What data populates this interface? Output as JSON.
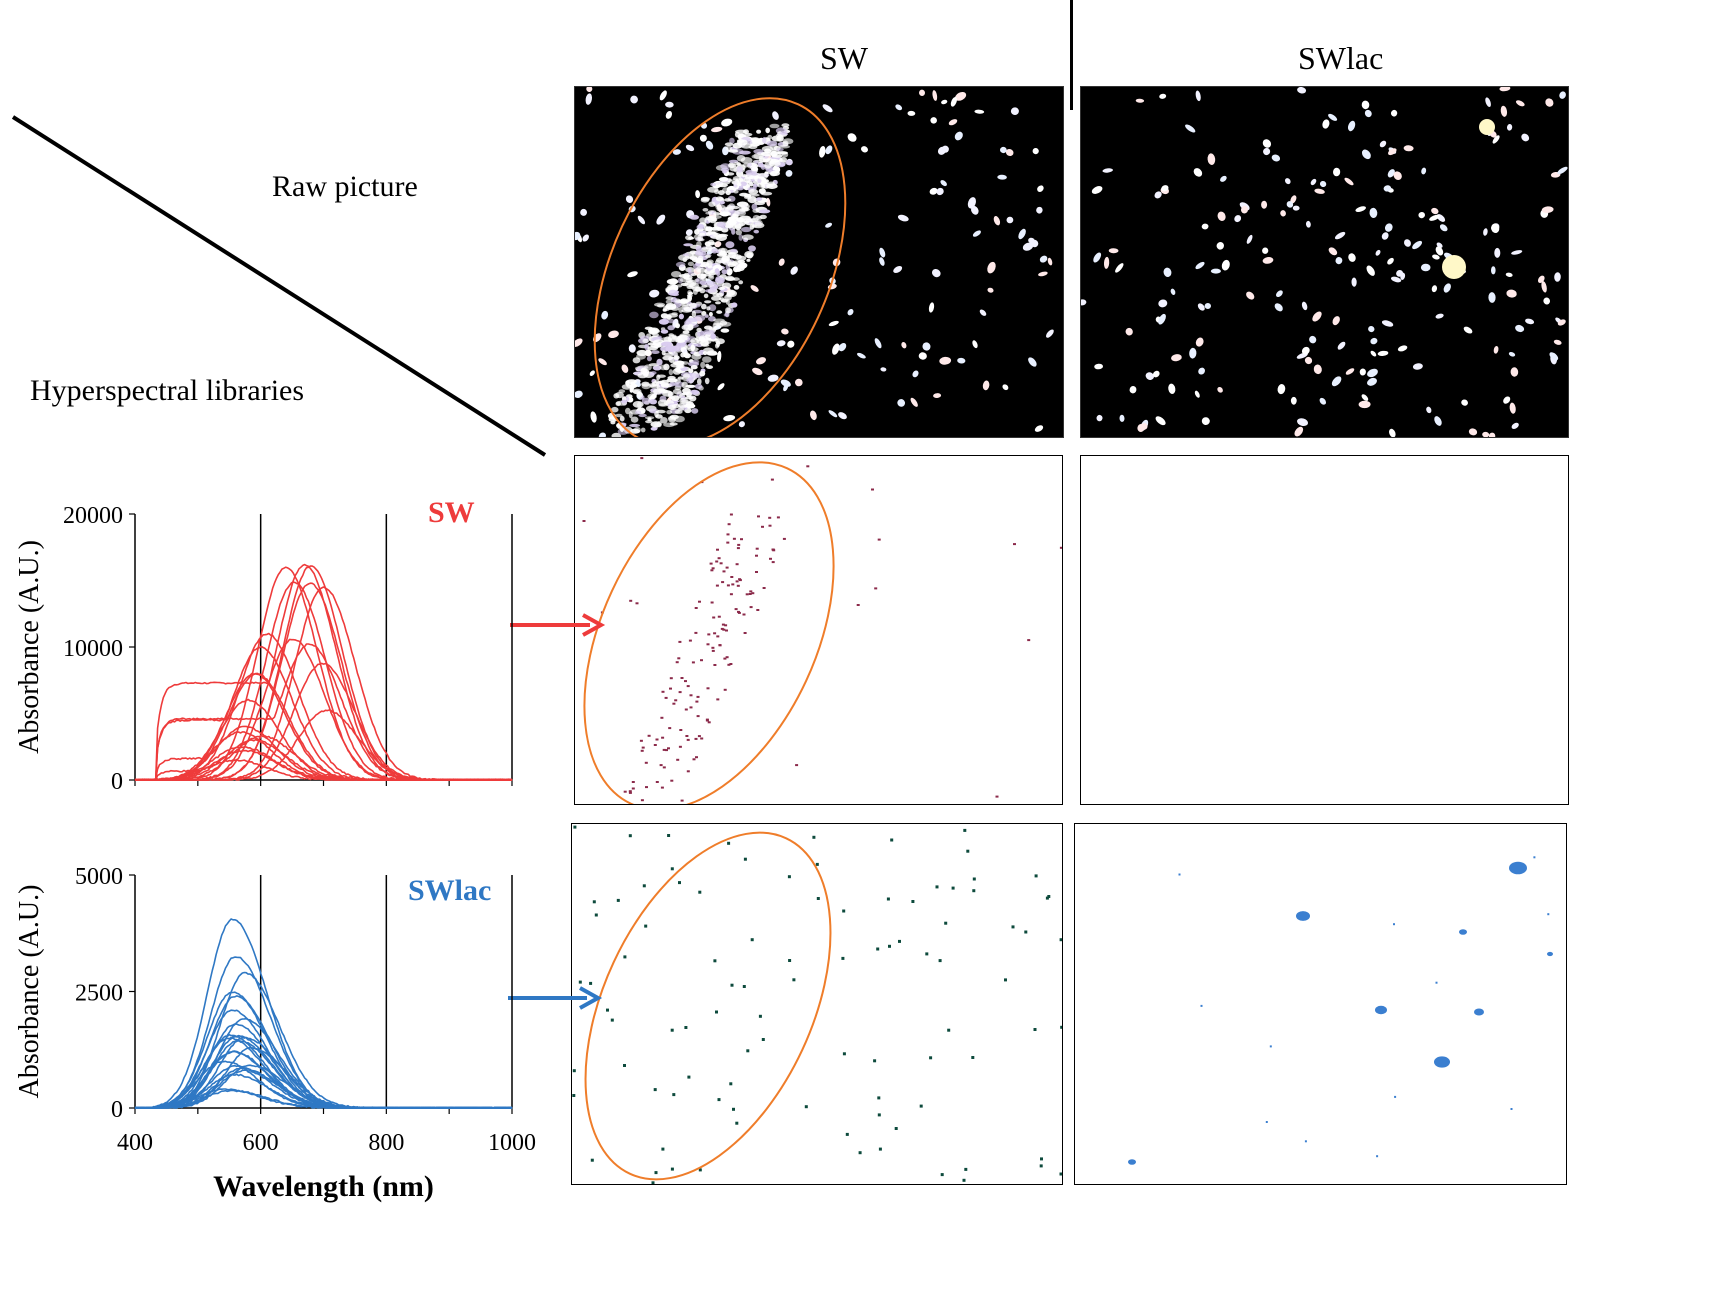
{
  "headers": {
    "col_sw": "SW",
    "col_swlac": "SWlac",
    "row_raw": "Raw picture",
    "row_libraries": "Hyperspectral libraries"
  },
  "colors": {
    "sw_series": "#ee3b3b",
    "swlac_series": "#2f78c4",
    "highlight_ellipse": "#ef7d2a",
    "sw_points": "#8b2a4a",
    "swlac_points_sw_image": "#0d4a3c",
    "swlac_points_swlac_image": "#3b7fd0"
  },
  "chart_data": [
    {
      "type": "line",
      "series_label": "SW",
      "ylabel": "Absorbance (A.U.)",
      "xlim": [
        400,
        1000
      ],
      "ylim": [
        0,
        20000
      ],
      "y_ticks": [
        "0",
        "10000",
        "20000"
      ],
      "x_gridlines": [
        600,
        800,
        1000
      ],
      "grid": "vertical",
      "curve_count": 22,
      "max_curve": {
        "peak_wavelength": 670,
        "peak_value": 16200
      },
      "curves_sample": [
        {
          "peak_wavelength": 640,
          "peak_value": 16000
        },
        {
          "peak_wavelength": 680,
          "peak_value": 16100
        },
        {
          "peak_wavelength": 700,
          "peak_value": 14500
        },
        {
          "peak_wavelength": 610,
          "peak_value": 11000
        },
        {
          "peak_wavelength": 600,
          "peak_value": 10000
        },
        {
          "peak_wavelength": 590,
          "peak_value": 8000
        },
        {
          "peak_wavelength": 580,
          "peak_value": 6000
        },
        {
          "peak_wavelength": 575,
          "peak_value": 4000
        },
        {
          "peak_wavelength": 570,
          "peak_value": 2500
        },
        {
          "peak_wavelength": 560,
          "peak_value": 1500
        }
      ]
    },
    {
      "type": "line",
      "series_label": "SWlac",
      "ylabel": "Absorbance (A.U.)",
      "xlabel": "Wavelength (nm)",
      "xlim": [
        400,
        1000
      ],
      "ylim": [
        0,
        5000
      ],
      "y_ticks": [
        "0",
        "2500",
        "5000"
      ],
      "x_ticks": [
        "400",
        "600",
        "800",
        "1000"
      ],
      "x_gridlines": [
        600,
        800,
        1000
      ],
      "grid": "vertical",
      "curve_count": 24,
      "max_curve": {
        "peak_wavelength": 555,
        "peak_value": 4050
      },
      "curves_sample": [
        {
          "peak_wavelength": 560,
          "peak_value": 3250
        },
        {
          "peak_wavelength": 575,
          "peak_value": 2900
        },
        {
          "peak_wavelength": 560,
          "peak_value": 2400
        },
        {
          "peak_wavelength": 555,
          "peak_value": 2100
        },
        {
          "peak_wavelength": 560,
          "peak_value": 1800
        },
        {
          "peak_wavelength": 550,
          "peak_value": 1500
        },
        {
          "peak_wavelength": 555,
          "peak_value": 1200
        },
        {
          "peak_wavelength": 560,
          "peak_value": 900
        }
      ]
    }
  ]
}
